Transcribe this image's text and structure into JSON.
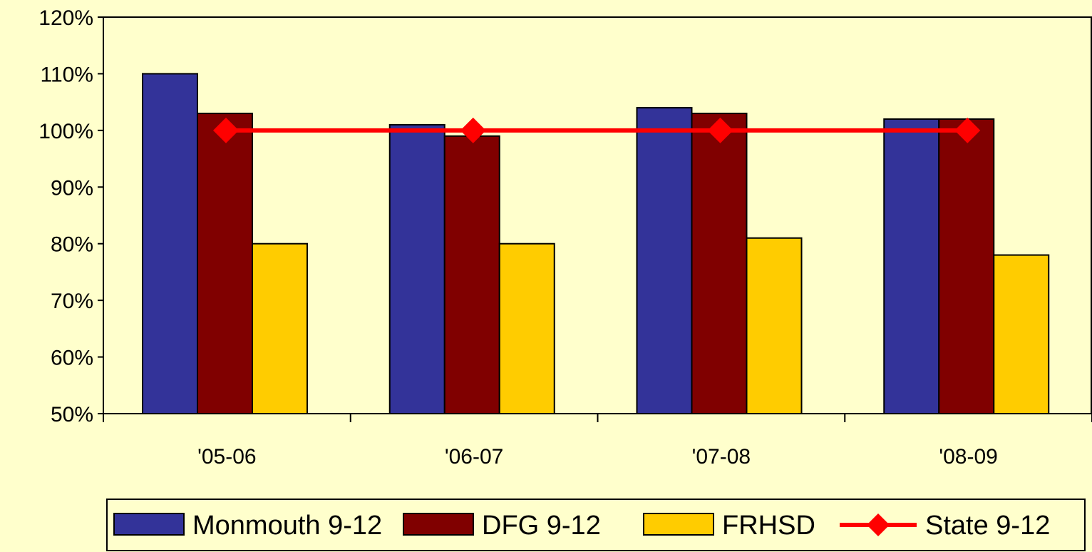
{
  "chart_data": {
    "type": "bar",
    "categories": [
      "'05-06",
      "'06-07",
      "'07-08",
      "'08-09"
    ],
    "y_ticks": [
      "50%",
      "60%",
      "70%",
      "80%",
      "90%",
      "100%",
      "110%",
      "120%"
    ],
    "ylim": [
      50,
      120
    ],
    "grid": false,
    "legend_position": "bottom",
    "series": [
      {
        "name": "Monmouth 9-12",
        "kind": "bar",
        "color": "#333399",
        "values": [
          110,
          101,
          104,
          102
        ]
      },
      {
        "name": "DFG 9-12",
        "kind": "bar",
        "color": "#800000",
        "values": [
          103,
          99,
          103,
          102
        ]
      },
      {
        "name": "FRHSD",
        "kind": "bar",
        "color": "#FFCC00",
        "values": [
          80,
          80,
          81,
          78
        ]
      },
      {
        "name": "State 9-12",
        "kind": "line",
        "color": "#FF0000",
        "values": [
          100,
          100,
          100,
          100
        ]
      }
    ]
  }
}
